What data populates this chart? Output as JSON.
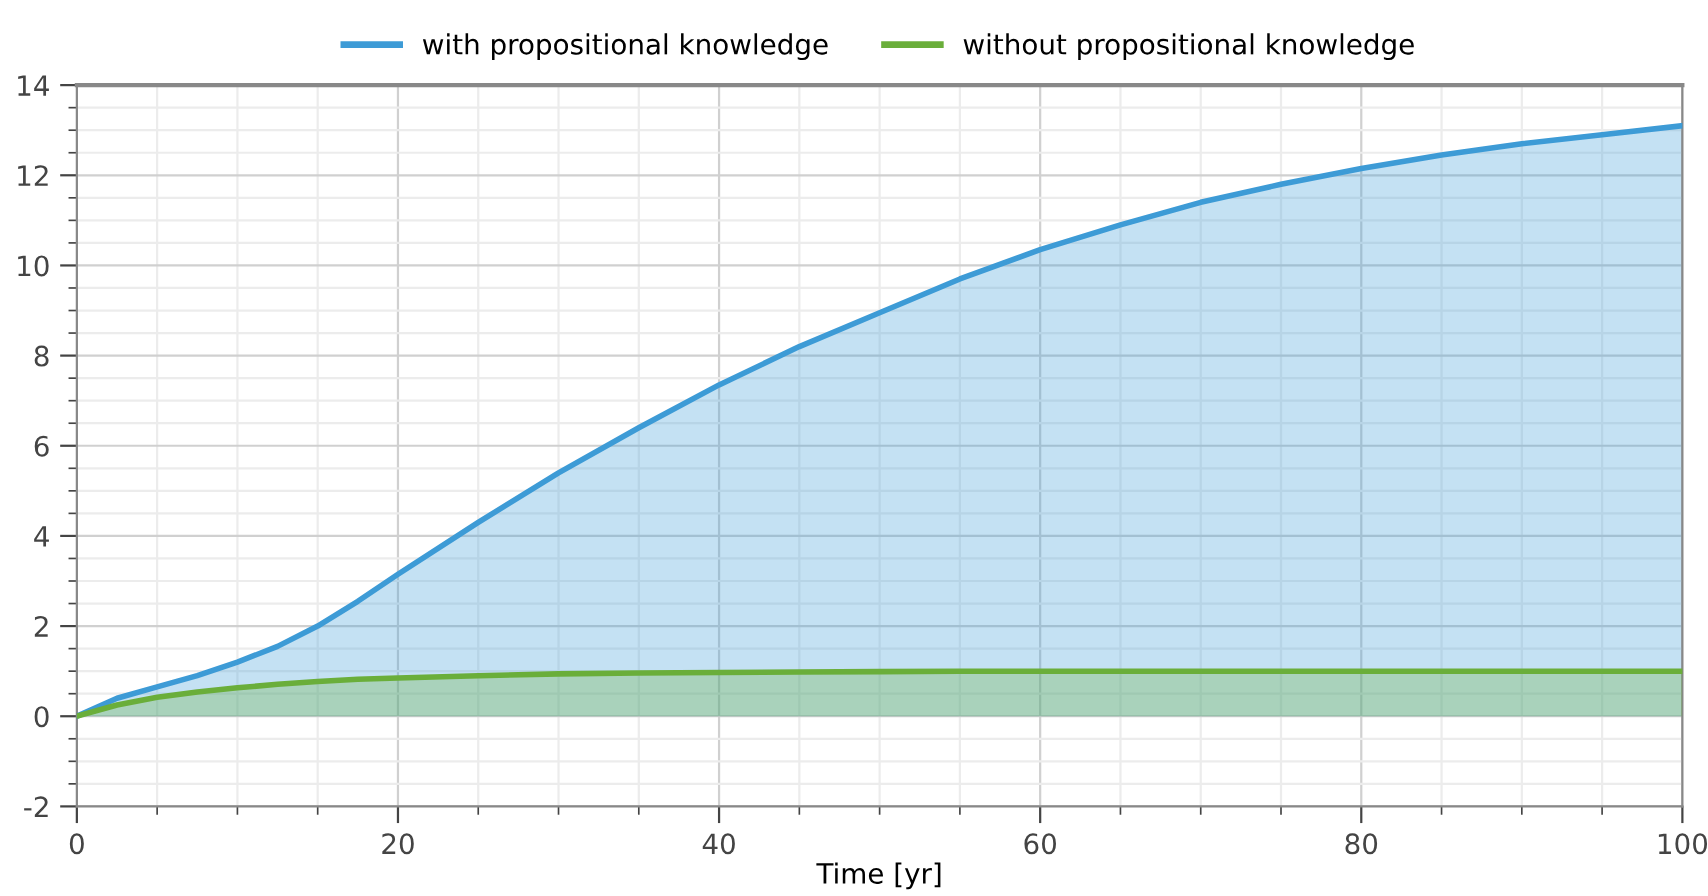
{
  "chart_data": {
    "type": "area",
    "xlabel": "Time [yr]",
    "x": [
      0,
      2.5,
      5,
      7.5,
      10,
      12.5,
      15,
      17.5,
      20,
      25,
      30,
      35,
      40,
      45,
      50,
      55,
      60,
      65,
      70,
      75,
      80,
      85,
      90,
      95,
      100
    ],
    "series": [
      {
        "name": "with propositional knowledge",
        "color": "#3d9bd6",
        "values": [
          0,
          0.4,
          0.65,
          0.9,
          1.2,
          1.55,
          2.0,
          2.55,
          3.15,
          4.3,
          5.4,
          6.4,
          7.35,
          8.2,
          8.95,
          9.7,
          10.35,
          10.9,
          11.4,
          11.8,
          12.15,
          12.45,
          12.7,
          12.9,
          13.1
        ]
      },
      {
        "name": "without propositional knowledge",
        "color": "#6aae3a",
        "values": [
          0,
          0.25,
          0.42,
          0.54,
          0.63,
          0.71,
          0.77,
          0.82,
          0.85,
          0.9,
          0.94,
          0.96,
          0.97,
          0.98,
          0.99,
          1.0,
          1.0,
          1.0,
          1.0,
          1.0,
          1.0,
          1.0,
          1.0,
          1.0,
          1.0
        ]
      }
    ],
    "xlim": [
      0,
      100
    ],
    "xticks": [
      0,
      20,
      40,
      60,
      80,
      100
    ],
    "ylim": [
      -2,
      14
    ],
    "yticks": [
      -2,
      0,
      2,
      4,
      6,
      8,
      10,
      12,
      14
    ],
    "grid": true,
    "legend": "top",
    "line_style": "solid",
    "marker": "none"
  }
}
